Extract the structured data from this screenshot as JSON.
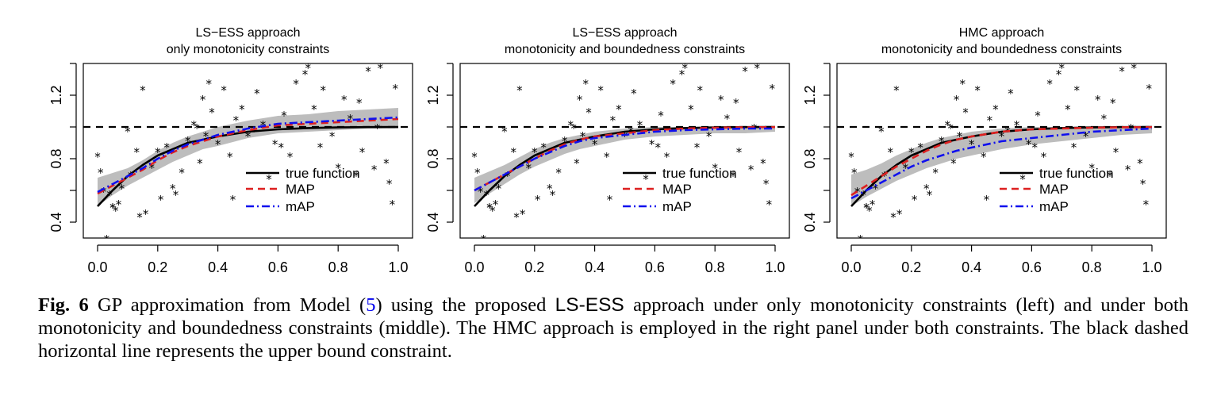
{
  "caption": {
    "label": "Fig. 6",
    "part1": " GP approximation from Model (",
    "ref": "5",
    "part2": ") using the proposed ",
    "method": "LS-ESS",
    "part3": " approach under only monotonicity constraints (left) and under both monotonicity and boundedness constraints (middle). The HMC approach is employed in the right panel under both constraints. The black dashed horizontal line represents the upper bound constraint."
  },
  "colors": {
    "true": "#000000",
    "map": "#dd2020",
    "mapx": "#1010ee",
    "band": "#bdbdbd"
  },
  "chart_data": [
    {
      "type": "line",
      "title": [
        "LS−ESS approach",
        "only monotonicity constraints"
      ],
      "xlabel": "",
      "ylabel": "",
      "xlim": [
        0,
        1
      ],
      "ylim": [
        0.3,
        1.4
      ],
      "xticks": [
        "0.0",
        "0.2",
        "0.4",
        "0.6",
        "0.8",
        "1.0"
      ],
      "yticks": [
        "0.4",
        "0.8",
        "1.2"
      ],
      "upper_bound": 1.0,
      "legend": [
        "true function",
        "MAP",
        "mAP"
      ],
      "x": [
        0.0,
        0.05,
        0.1,
        0.15,
        0.2,
        0.25,
        0.3,
        0.35,
        0.4,
        0.5,
        0.6,
        0.7,
        0.8,
        0.9,
        1.0
      ],
      "series": [
        {
          "name": "true function",
          "values": [
            0.5,
            0.6,
            0.69,
            0.76,
            0.82,
            0.86,
            0.9,
            0.92,
            0.94,
            0.97,
            0.985,
            0.993,
            0.997,
            0.999,
            1.0
          ]
        },
        {
          "name": "MAP",
          "values": [
            0.58,
            0.63,
            0.68,
            0.73,
            0.79,
            0.84,
            0.88,
            0.91,
            0.94,
            0.98,
            1.01,
            1.02,
            1.03,
            1.04,
            1.05
          ]
        },
        {
          "name": "mAP",
          "values": [
            0.59,
            0.64,
            0.69,
            0.74,
            0.8,
            0.85,
            0.89,
            0.92,
            0.95,
            0.99,
            1.02,
            1.03,
            1.04,
            1.05,
            1.06
          ]
        }
      ],
      "band": {
        "lower": [
          0.5,
          0.57,
          0.63,
          0.68,
          0.73,
          0.78,
          0.82,
          0.86,
          0.88,
          0.93,
          0.96,
          0.97,
          0.98,
          0.99,
          0.99
        ],
        "upper": [
          0.68,
          0.71,
          0.74,
          0.79,
          0.85,
          0.9,
          0.94,
          0.97,
          1.0,
          1.04,
          1.07,
          1.08,
          1.1,
          1.11,
          1.12
        ]
      }
    },
    {
      "type": "line",
      "title": [
        "LS−ESS approach",
        "monotonicity and boundedness constraints"
      ],
      "xlabel": "",
      "ylabel": "",
      "xlim": [
        0,
        1
      ],
      "ylim": [
        0.3,
        1.4
      ],
      "xticks": [
        "0.0",
        "0.2",
        "0.4",
        "0.6",
        "0.8",
        "1.0"
      ],
      "yticks": [
        "0.4",
        "0.8",
        "1.2"
      ],
      "upper_bound": 1.0,
      "legend": [
        "true function",
        "MAP",
        "mAP"
      ],
      "x": [
        0.0,
        0.05,
        0.1,
        0.15,
        0.2,
        0.25,
        0.3,
        0.35,
        0.4,
        0.5,
        0.6,
        0.7,
        0.8,
        0.9,
        1.0
      ],
      "series": [
        {
          "name": "true function",
          "values": [
            0.5,
            0.6,
            0.69,
            0.76,
            0.82,
            0.86,
            0.9,
            0.92,
            0.94,
            0.97,
            0.985,
            0.993,
            0.997,
            0.999,
            1.0
          ]
        },
        {
          "name": "MAP",
          "values": [
            0.6,
            0.65,
            0.7,
            0.75,
            0.8,
            0.85,
            0.89,
            0.92,
            0.94,
            0.96,
            0.98,
            0.99,
            0.995,
            0.998,
            0.999
          ]
        },
        {
          "name": "mAP",
          "values": [
            0.6,
            0.65,
            0.7,
            0.75,
            0.8,
            0.84,
            0.88,
            0.91,
            0.93,
            0.95,
            0.97,
            0.98,
            0.985,
            0.99,
            0.99
          ]
        }
      ],
      "band": {
        "lower": [
          0.52,
          0.58,
          0.64,
          0.7,
          0.75,
          0.79,
          0.83,
          0.86,
          0.88,
          0.92,
          0.94,
          0.95,
          0.96,
          0.96,
          0.97
        ],
        "upper": [
          0.68,
          0.72,
          0.76,
          0.81,
          0.86,
          0.9,
          0.93,
          0.95,
          0.97,
          0.99,
          1.0,
          1.0,
          1.0,
          1.0,
          1.0
        ]
      }
    },
    {
      "type": "line",
      "title": [
        "HMC approach",
        "monotonicity and boundedness constraints"
      ],
      "xlabel": "",
      "ylabel": "",
      "xlim": [
        0,
        1
      ],
      "ylim": [
        0.3,
        1.4
      ],
      "xticks": [
        "0.0",
        "0.2",
        "0.4",
        "0.6",
        "0.8",
        "1.0"
      ],
      "yticks": [
        "0.4",
        "0.8",
        "1.2"
      ],
      "upper_bound": 1.0,
      "legend": [
        "true function",
        "MAP",
        "mAP"
      ],
      "x": [
        0.0,
        0.05,
        0.1,
        0.15,
        0.2,
        0.25,
        0.3,
        0.35,
        0.4,
        0.5,
        0.6,
        0.7,
        0.8,
        0.9,
        1.0
      ],
      "series": [
        {
          "name": "true function",
          "values": [
            0.5,
            0.6,
            0.69,
            0.76,
            0.82,
            0.86,
            0.9,
            0.92,
            0.94,
            0.97,
            0.985,
            0.993,
            0.997,
            0.999,
            1.0
          ]
        },
        {
          "name": "MAP",
          "values": [
            0.57,
            0.63,
            0.69,
            0.75,
            0.8,
            0.85,
            0.89,
            0.92,
            0.94,
            0.97,
            0.985,
            0.99,
            0.995,
            0.998,
            0.999
          ]
        },
        {
          "name": "mAP",
          "values": [
            0.55,
            0.6,
            0.65,
            0.7,
            0.75,
            0.79,
            0.82,
            0.85,
            0.87,
            0.91,
            0.93,
            0.95,
            0.97,
            0.98,
            0.99
          ]
        }
      ],
      "band": {
        "lower": [
          0.5,
          0.56,
          0.61,
          0.66,
          0.7,
          0.74,
          0.77,
          0.8,
          0.82,
          0.86,
          0.89,
          0.91,
          0.93,
          0.95,
          0.96
        ],
        "upper": [
          0.7,
          0.73,
          0.77,
          0.82,
          0.86,
          0.9,
          0.93,
          0.95,
          0.97,
          0.99,
          1.0,
          1.0,
          1.0,
          1.0,
          1.0
        ]
      }
    }
  ],
  "observations": {
    "x": [
      0.0,
      0.01,
      0.02,
      0.03,
      0.04,
      0.05,
      0.06,
      0.07,
      0.08,
      0.1,
      0.11,
      0.13,
      0.15,
      0.16,
      0.18,
      0.2,
      0.21,
      0.23,
      0.25,
      0.26,
      0.28,
      0.3,
      0.32,
      0.34,
      0.35,
      0.37,
      0.38,
      0.4,
      0.42,
      0.44,
      0.46,
      0.48,
      0.5,
      0.52,
      0.55,
      0.57,
      0.59,
      0.6,
      0.62,
      0.64,
      0.66,
      0.68,
      0.7,
      0.72,
      0.74,
      0.76,
      0.78,
      0.8,
      0.82,
      0.84,
      0.86,
      0.88,
      0.9,
      0.92,
      0.94,
      0.96,
      0.98,
      0.99,
      0.05,
      0.14,
      0.33,
      0.36,
      0.45,
      0.53,
      0.61,
      0.69,
      0.75,
      0.87,
      0.93,
      0.97
    ],
    "y": [
      0.82,
      0.72,
      0.6,
      0.3,
      0.58,
      0.5,
      0.48,
      0.52,
      0.62,
      0.98,
      0.7,
      0.85,
      1.24,
      0.46,
      0.75,
      0.85,
      0.55,
      0.88,
      0.62,
      0.58,
      0.72,
      0.92,
      1.02,
      0.78,
      1.18,
      1.28,
      1.1,
      0.9,
      1.24,
      0.82,
      1.05,
      1.12,
      0.95,
      0.98,
      1.02,
      0.68,
      0.9,
      1.42,
      1.08,
      0.82,
      1.28,
      1.46,
      1.38,
      1.12,
      0.88,
      1.44,
      0.95,
      0.75,
      1.18,
      1.06,
      0.7,
      0.85,
      1.36,
      0.74,
      1.38,
      0.78,
      0.52,
      1.25,
      0.5,
      0.44,
      1.0,
      0.95,
      0.55,
      1.22,
      0.88,
      1.34,
      1.24,
      1.16,
      1.0,
      0.65
    ]
  }
}
